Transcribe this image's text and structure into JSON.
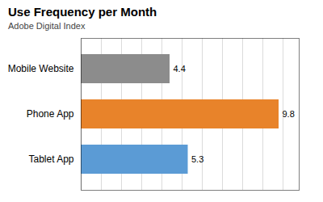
{
  "chart_data": {
    "type": "bar",
    "orientation": "horizontal",
    "title": "Use Frequency per Month",
    "subtitle": "Adobe Digital Index",
    "categories": [
      "Mobile Website",
      "Phone App",
      "Tablet App"
    ],
    "values": [
      4.4,
      9.8,
      5.3
    ],
    "colors": [
      "#8c8c8c",
      "#e8832a",
      "#5b9bd5"
    ],
    "xlim": [
      0,
      10.8
    ],
    "xticks": [
      0,
      1,
      2,
      3,
      4,
      5,
      6,
      7,
      8,
      9,
      10
    ],
    "grid": true,
    "data_labels": true,
    "tick_labels": "y"
  }
}
